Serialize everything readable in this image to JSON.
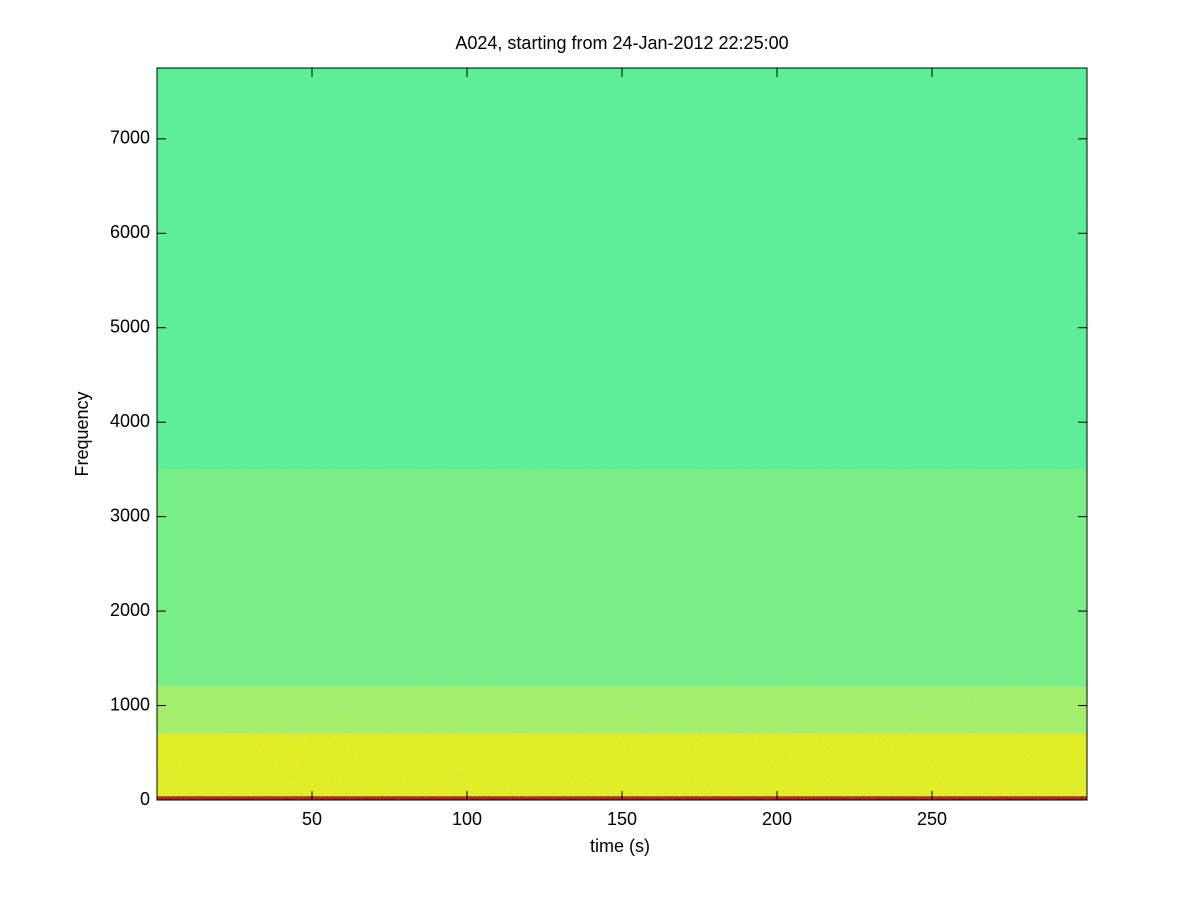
{
  "chart_data": {
    "type": "spectrogram",
    "title": "A024, starting from 24-Jan-2012 22:25:00",
    "x_label": "time (s)",
    "y_label": "Frequency",
    "xlim": [
      0,
      300
    ],
    "xticks": [
      50,
      100,
      150,
      200,
      250
    ],
    "ylim": [
      0,
      7750
    ],
    "yticks": [
      0,
      1000,
      2000,
      3000,
      4000,
      5000,
      6000,
      7000
    ],
    "bands": [
      {
        "range": [
          3500,
          7750
        ],
        "color": "#5ef08f"
      },
      {
        "range": [
          1200,
          3500
        ],
        "color": "#7cf07a"
      },
      {
        "range": [
          700,
          1200
        ],
        "color": "#aef05e"
      },
      {
        "range": [
          40,
          700
        ],
        "color": "#f0ee10"
      },
      {
        "range": [
          0,
          40
        ],
        "color": "#b81a00"
      }
    ]
  }
}
